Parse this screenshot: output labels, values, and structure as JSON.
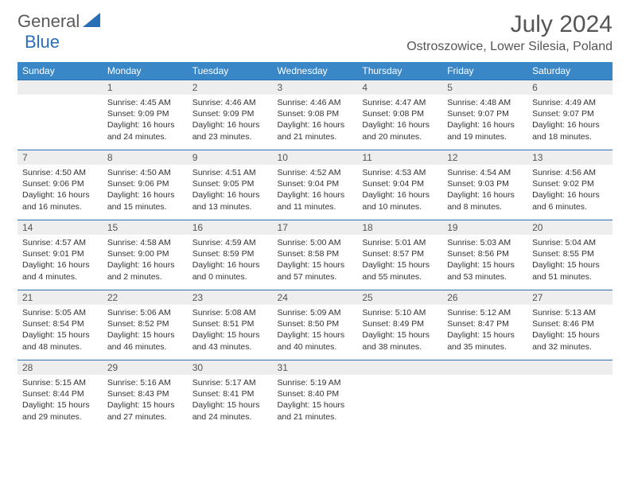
{
  "brand": {
    "part1": "General",
    "part2": "Blue"
  },
  "title": "July 2024",
  "location": "Ostroszowice, Lower Silesia, Poland",
  "colors": {
    "header_bg": "#3a87c8",
    "accent": "#2a6fb5",
    "daynum_bg": "#eeeeee",
    "text": "#333333",
    "title_text": "#555555"
  },
  "weekdays": [
    "Sunday",
    "Monday",
    "Tuesday",
    "Wednesday",
    "Thursday",
    "Friday",
    "Saturday"
  ],
  "weeks": [
    [
      null,
      {
        "n": "1",
        "sr": "Sunrise: 4:45 AM",
        "ss": "Sunset: 9:09 PM",
        "d1": "Daylight: 16 hours",
        "d2": "and 24 minutes."
      },
      {
        "n": "2",
        "sr": "Sunrise: 4:46 AM",
        "ss": "Sunset: 9:09 PM",
        "d1": "Daylight: 16 hours",
        "d2": "and 23 minutes."
      },
      {
        "n": "3",
        "sr": "Sunrise: 4:46 AM",
        "ss": "Sunset: 9:08 PM",
        "d1": "Daylight: 16 hours",
        "d2": "and 21 minutes."
      },
      {
        "n": "4",
        "sr": "Sunrise: 4:47 AM",
        "ss": "Sunset: 9:08 PM",
        "d1": "Daylight: 16 hours",
        "d2": "and 20 minutes."
      },
      {
        "n": "5",
        "sr": "Sunrise: 4:48 AM",
        "ss": "Sunset: 9:07 PM",
        "d1": "Daylight: 16 hours",
        "d2": "and 19 minutes."
      },
      {
        "n": "6",
        "sr": "Sunrise: 4:49 AM",
        "ss": "Sunset: 9:07 PM",
        "d1": "Daylight: 16 hours",
        "d2": "and 18 minutes."
      }
    ],
    [
      {
        "n": "7",
        "sr": "Sunrise: 4:50 AM",
        "ss": "Sunset: 9:06 PM",
        "d1": "Daylight: 16 hours",
        "d2": "and 16 minutes."
      },
      {
        "n": "8",
        "sr": "Sunrise: 4:50 AM",
        "ss": "Sunset: 9:06 PM",
        "d1": "Daylight: 16 hours",
        "d2": "and 15 minutes."
      },
      {
        "n": "9",
        "sr": "Sunrise: 4:51 AM",
        "ss": "Sunset: 9:05 PM",
        "d1": "Daylight: 16 hours",
        "d2": "and 13 minutes."
      },
      {
        "n": "10",
        "sr": "Sunrise: 4:52 AM",
        "ss": "Sunset: 9:04 PM",
        "d1": "Daylight: 16 hours",
        "d2": "and 11 minutes."
      },
      {
        "n": "11",
        "sr": "Sunrise: 4:53 AM",
        "ss": "Sunset: 9:04 PM",
        "d1": "Daylight: 16 hours",
        "d2": "and 10 minutes."
      },
      {
        "n": "12",
        "sr": "Sunrise: 4:54 AM",
        "ss": "Sunset: 9:03 PM",
        "d1": "Daylight: 16 hours",
        "d2": "and 8 minutes."
      },
      {
        "n": "13",
        "sr": "Sunrise: 4:56 AM",
        "ss": "Sunset: 9:02 PM",
        "d1": "Daylight: 16 hours",
        "d2": "and 6 minutes."
      }
    ],
    [
      {
        "n": "14",
        "sr": "Sunrise: 4:57 AM",
        "ss": "Sunset: 9:01 PM",
        "d1": "Daylight: 16 hours",
        "d2": "and 4 minutes."
      },
      {
        "n": "15",
        "sr": "Sunrise: 4:58 AM",
        "ss": "Sunset: 9:00 PM",
        "d1": "Daylight: 16 hours",
        "d2": "and 2 minutes."
      },
      {
        "n": "16",
        "sr": "Sunrise: 4:59 AM",
        "ss": "Sunset: 8:59 PM",
        "d1": "Daylight: 16 hours",
        "d2": "and 0 minutes."
      },
      {
        "n": "17",
        "sr": "Sunrise: 5:00 AM",
        "ss": "Sunset: 8:58 PM",
        "d1": "Daylight: 15 hours",
        "d2": "and 57 minutes."
      },
      {
        "n": "18",
        "sr": "Sunrise: 5:01 AM",
        "ss": "Sunset: 8:57 PM",
        "d1": "Daylight: 15 hours",
        "d2": "and 55 minutes."
      },
      {
        "n": "19",
        "sr": "Sunrise: 5:03 AM",
        "ss": "Sunset: 8:56 PM",
        "d1": "Daylight: 15 hours",
        "d2": "and 53 minutes."
      },
      {
        "n": "20",
        "sr": "Sunrise: 5:04 AM",
        "ss": "Sunset: 8:55 PM",
        "d1": "Daylight: 15 hours",
        "d2": "and 51 minutes."
      }
    ],
    [
      {
        "n": "21",
        "sr": "Sunrise: 5:05 AM",
        "ss": "Sunset: 8:54 PM",
        "d1": "Daylight: 15 hours",
        "d2": "and 48 minutes."
      },
      {
        "n": "22",
        "sr": "Sunrise: 5:06 AM",
        "ss": "Sunset: 8:52 PM",
        "d1": "Daylight: 15 hours",
        "d2": "and 46 minutes."
      },
      {
        "n": "23",
        "sr": "Sunrise: 5:08 AM",
        "ss": "Sunset: 8:51 PM",
        "d1": "Daylight: 15 hours",
        "d2": "and 43 minutes."
      },
      {
        "n": "24",
        "sr": "Sunrise: 5:09 AM",
        "ss": "Sunset: 8:50 PM",
        "d1": "Daylight: 15 hours",
        "d2": "and 40 minutes."
      },
      {
        "n": "25",
        "sr": "Sunrise: 5:10 AM",
        "ss": "Sunset: 8:49 PM",
        "d1": "Daylight: 15 hours",
        "d2": "and 38 minutes."
      },
      {
        "n": "26",
        "sr": "Sunrise: 5:12 AM",
        "ss": "Sunset: 8:47 PM",
        "d1": "Daylight: 15 hours",
        "d2": "and 35 minutes."
      },
      {
        "n": "27",
        "sr": "Sunrise: 5:13 AM",
        "ss": "Sunset: 8:46 PM",
        "d1": "Daylight: 15 hours",
        "d2": "and 32 minutes."
      }
    ],
    [
      {
        "n": "28",
        "sr": "Sunrise: 5:15 AM",
        "ss": "Sunset: 8:44 PM",
        "d1": "Daylight: 15 hours",
        "d2": "and 29 minutes."
      },
      {
        "n": "29",
        "sr": "Sunrise: 5:16 AM",
        "ss": "Sunset: 8:43 PM",
        "d1": "Daylight: 15 hours",
        "d2": "and 27 minutes."
      },
      {
        "n": "30",
        "sr": "Sunrise: 5:17 AM",
        "ss": "Sunset: 8:41 PM",
        "d1": "Daylight: 15 hours",
        "d2": "and 24 minutes."
      },
      {
        "n": "31",
        "sr": "Sunrise: 5:19 AM",
        "ss": "Sunset: 8:40 PM",
        "d1": "Daylight: 15 hours",
        "d2": "and 21 minutes."
      },
      null,
      null,
      null
    ]
  ]
}
